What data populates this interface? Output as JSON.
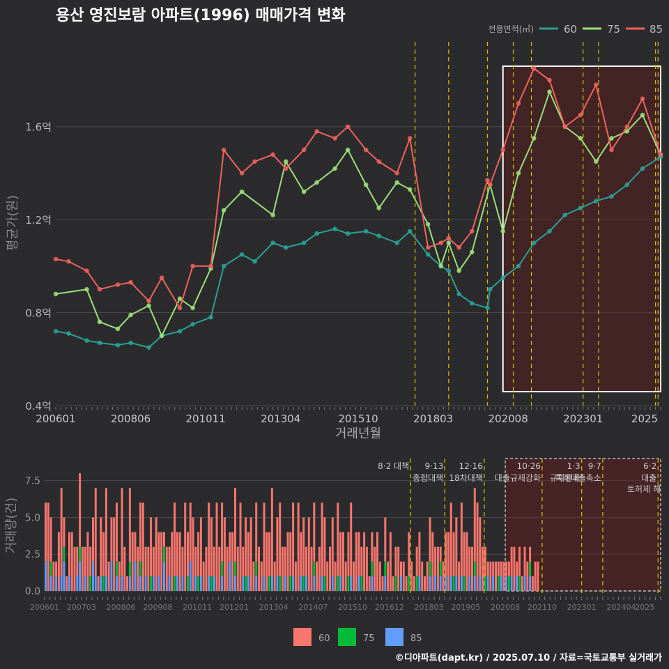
{
  "title": "용산 영진보람 아파트(1996) 매매가격 변화",
  "footer": "©디아파트(dapt.kr) / 2025.07.10 / 자료=국토교통부 실거래가",
  "colors": {
    "s60": "#2aa198",
    "s75": "#9be07a",
    "s85": "#f0625e",
    "bar60": "#f8766d",
    "bar75": "#00ba38",
    "bar85": "#619cff",
    "policy": "#d4b400",
    "grid": "#4a4a4c"
  },
  "chart_data": [
    {
      "type": "line",
      "title": "용산 영진보람 아파트(1996) 매매가격 변화",
      "xlabel": "거래년월",
      "ylabel": "평균가(원)",
      "legend_title": "전용면적(㎡)",
      "legend_position": "top-right",
      "ylim": [
        0.4,
        1.98
      ],
      "yticks": [
        0.4,
        0.8,
        1.2,
        1.6
      ],
      "ytick_labels": [
        "0.4억",
        "0.8억",
        "1.2억",
        "1.6억"
      ],
      "xticks": [
        "200601",
        "200806",
        "201011",
        "201304",
        "201510",
        "201803",
        "202008",
        "202301",
        "2025"
      ],
      "highlight_range": [
        "202006",
        "202507"
      ],
      "policy_lines": [
        "201708",
        "201809",
        "201912",
        "202010",
        "202105",
        "202301",
        "202307",
        "202505",
        "202506"
      ],
      "series": [
        {
          "name": "60",
          "x": [
            "200601",
            "200606",
            "200701",
            "200706",
            "200801",
            "200806",
            "200901",
            "200906",
            "201001",
            "201006",
            "201101",
            "201106",
            "201201",
            "201206",
            "201301",
            "201306",
            "201401",
            "201406",
            "201501",
            "201506",
            "201601",
            "201606",
            "201701",
            "201706",
            "201801",
            "201806",
            "201809",
            "201901",
            "201906",
            "201912",
            "202001",
            "202006",
            "202012",
            "202106",
            "202112",
            "202206",
            "202212",
            "202306",
            "202312",
            "202406",
            "202412",
            "202507"
          ],
          "values": [
            0.72,
            0.71,
            0.68,
            0.67,
            0.66,
            0.67,
            0.65,
            0.7,
            0.72,
            0.75,
            0.78,
            1.0,
            1.05,
            1.02,
            1.1,
            1.08,
            1.1,
            1.14,
            1.16,
            1.14,
            1.15,
            1.13,
            1.1,
            1.15,
            1.05,
            1.0,
            0.98,
            0.88,
            0.84,
            0.82,
            0.9,
            0.95,
            1.0,
            1.1,
            1.15,
            1.22,
            1.25,
            1.28,
            1.3,
            1.35,
            1.42,
            1.47
          ]
        },
        {
          "name": "75",
          "x": [
            "200601",
            "200701",
            "200706",
            "200801",
            "200806",
            "200901",
            "200906",
            "201001",
            "201006",
            "201101",
            "201106",
            "201201",
            "201301",
            "201306",
            "201401",
            "201406",
            "201501",
            "201506",
            "201601",
            "201606",
            "201701",
            "201706",
            "201801",
            "201806",
            "201809",
            "201901",
            "201906",
            "202001",
            "202006",
            "202012",
            "202106",
            "202112",
            "202206",
            "202212",
            "202306",
            "202312",
            "202406",
            "202412",
            "202507"
          ],
          "values": [
            0.88,
            0.9,
            0.76,
            0.73,
            0.79,
            0.83,
            0.7,
            0.86,
            0.82,
            0.99,
            1.24,
            1.32,
            1.22,
            1.45,
            1.32,
            1.36,
            1.42,
            1.5,
            1.35,
            1.25,
            1.36,
            1.33,
            1.18,
            1.0,
            1.1,
            0.98,
            1.06,
            1.35,
            1.15,
            1.4,
            1.55,
            1.75,
            1.6,
            1.55,
            1.45,
            1.55,
            1.58,
            1.65,
            1.48
          ]
        },
        {
          "name": "85",
          "x": [
            "200601",
            "200606",
            "200701",
            "200706",
            "200801",
            "200806",
            "200901",
            "200906",
            "201001",
            "201006",
            "201101",
            "201106",
            "201201",
            "201206",
            "201301",
            "201306",
            "201401",
            "201406",
            "201501",
            "201506",
            "201601",
            "201606",
            "201701",
            "201706",
            "201801",
            "201806",
            "201809",
            "201901",
            "201906",
            "201912",
            "202001",
            "202006",
            "202012",
            "202106",
            "202112",
            "202206",
            "202212",
            "202306",
            "202312",
            "202406",
            "202412",
            "202507"
          ],
          "values": [
            1.03,
            1.02,
            0.98,
            0.9,
            0.92,
            0.93,
            0.85,
            0.95,
            0.82,
            1.0,
            1.0,
            1.5,
            1.4,
            1.45,
            1.48,
            1.42,
            1.5,
            1.58,
            1.55,
            1.6,
            1.5,
            1.45,
            1.4,
            1.55,
            1.08,
            1.1,
            1.12,
            1.08,
            1.15,
            1.37,
            1.35,
            1.5,
            1.7,
            1.85,
            1.8,
            1.6,
            1.65,
            1.78,
            1.5,
            1.6,
            1.72,
            1.48
          ]
        }
      ]
    },
    {
      "type": "bar",
      "ylabel": "거래량(건)",
      "ylim": [
        0,
        9
      ],
      "yticks": [
        0.0,
        2.5,
        5.0,
        7.5
      ],
      "ytick_labels": [
        "0.0",
        "2.5",
        "5.0",
        "7.5"
      ],
      "xticks": [
        "200601",
        "200703",
        "200806",
        "200908",
        "201011",
        "201201",
        "201304",
        "201407",
        "201510",
        "201612",
        "201803",
        "201905",
        "202008",
        "202110",
        "202301",
        "202404",
        "2025"
      ],
      "legend_position": "bottom",
      "series_names": [
        "60",
        "75",
        "85"
      ],
      "policies": [
        {
          "x": "201708",
          "label": "8·2 대책"
        },
        {
          "x": "201809",
          "label": "9·13\n종합대책"
        },
        {
          "x": "201912",
          "label": "12·16\n18차대책"
        },
        {
          "x": "202110",
          "label": "10·26\n대출규제강화"
        },
        {
          "x": "202301",
          "label": "1·3\n규제완화"
        },
        {
          "x": "202309",
          "label": "9·7\n특례대출축소"
        },
        {
          "x": "202506",
          "label": "6·2\n대출"
        }
      ],
      "policy_tail_labels": [
        "토허제 해"
      ],
      "monthly_counts": {
        "60": [
          4,
          6,
          3,
          2,
          1,
          4,
          6,
          2,
          1,
          3,
          4,
          3,
          2,
          5,
          3,
          2,
          4,
          2,
          3,
          6,
          1,
          4,
          3,
          6,
          2,
          3,
          5,
          4,
          2,
          6,
          3,
          1,
          5,
          4,
          2,
          3,
          4,
          6,
          2,
          3,
          4,
          2,
          5,
          3,
          4,
          1,
          3,
          2,
          4,
          5,
          3,
          4,
          2,
          6,
          3,
          4,
          5,
          2,
          3,
          4,
          2,
          3,
          5,
          4,
          2,
          6,
          3,
          4,
          5,
          3,
          2,
          4,
          5,
          3,
          6,
          2,
          4,
          3,
          5,
          2,
          4,
          3,
          2,
          5,
          4,
          3,
          6,
          2,
          4,
          5,
          3,
          2,
          4,
          3,
          5,
          2,
          6,
          3,
          4,
          2,
          5,
          3,
          4,
          2,
          3,
          5,
          4,
          2,
          3,
          4,
          2,
          5,
          3,
          4,
          2,
          3,
          5,
          2,
          4,
          3,
          2,
          4,
          3,
          1,
          2,
          3,
          4,
          2,
          1,
          3,
          2,
          4,
          1,
          2,
          3,
          1,
          2,
          1,
          3,
          2,
          1,
          2,
          3,
          2,
          1,
          2,
          3,
          4,
          2,
          3,
          1,
          2,
          3,
          4,
          5,
          3,
          4,
          2,
          5,
          3,
          4,
          2,
          3,
          5,
          6,
          4,
          3,
          2,
          1,
          2,
          1,
          2,
          1,
          1,
          2,
          1,
          1,
          2,
          3,
          1,
          2,
          1,
          2,
          2,
          1,
          1,
          2,
          2
        ],
        "75": [
          0,
          0,
          1,
          0,
          0,
          0,
          0,
          1,
          0,
          0,
          0,
          0,
          0,
          1,
          0,
          0,
          0,
          1,
          0,
          0,
          0,
          0,
          1,
          0,
          0,
          0,
          0,
          1,
          0,
          0,
          0,
          0,
          1,
          0,
          0,
          0,
          1,
          0,
          0,
          0,
          1,
          0,
          0,
          0,
          0,
          1,
          0,
          0,
          0,
          1,
          0,
          0,
          0,
          0,
          1,
          0,
          0,
          0,
          1,
          0,
          0,
          0,
          0,
          1,
          0,
          0,
          0,
          1,
          0,
          0,
          0,
          0,
          1,
          0,
          0,
          0,
          1,
          0,
          0,
          0,
          1,
          0,
          0,
          0,
          0,
          1,
          0,
          0,
          0,
          1,
          0,
          0,
          0,
          1,
          0,
          0,
          0,
          0,
          1,
          0,
          0,
          0,
          1,
          0,
          0,
          0,
          1,
          0,
          0,
          0,
          0,
          1,
          0,
          0,
          0,
          1,
          0,
          0,
          0,
          0,
          1,
          0,
          0,
          0,
          1,
          0,
          0,
          0,
          0,
          1,
          0,
          0,
          0,
          1,
          0,
          0,
          0,
          0,
          1,
          0,
          0,
          1,
          0,
          0,
          0,
          0,
          1,
          0,
          0,
          0,
          1,
          0,
          0,
          0,
          0,
          1,
          0,
          0,
          0,
          1,
          0,
          0,
          0,
          1,
          0,
          0,
          0,
          1,
          0,
          0,
          0,
          0,
          1,
          0,
          0,
          0,
          1,
          0,
          0,
          0,
          1,
          0,
          0,
          0,
          1,
          0,
          0
        ],
        "85": [
          2,
          0,
          1,
          0,
          1,
          0,
          1,
          2,
          0,
          1,
          0,
          0,
          1,
          2,
          0,
          1,
          0,
          0,
          2,
          1,
          0,
          1,
          0,
          1,
          0,
          2,
          0,
          1,
          0,
          1,
          0,
          0,
          1,
          0,
          2,
          0,
          1,
          0,
          1,
          0,
          0,
          1,
          0,
          1,
          0,
          2,
          0,
          1,
          0,
          0,
          1,
          0,
          1,
          0,
          0,
          2,
          0,
          1,
          0,
          1,
          0,
          0,
          1,
          0,
          1,
          0,
          0,
          1,
          0,
          0,
          2,
          0,
          1,
          0,
          0,
          1,
          0,
          1,
          0,
          0,
          1,
          0,
          0,
          1,
          0,
          0,
          1,
          0,
          1,
          0,
          0,
          1,
          0,
          0,
          1,
          0,
          0,
          1,
          0,
          1,
          0,
          0,
          1,
          0,
          0,
          1,
          0,
          0,
          0,
          1,
          0,
          0,
          1,
          0,
          0,
          0,
          1,
          0,
          0,
          1,
          0,
          0,
          0,
          0,
          1,
          0,
          0,
          0,
          0,
          1,
          0,
          0,
          0,
          0,
          0,
          1,
          0,
          0,
          0,
          0,
          0,
          0,
          1,
          0,
          0,
          0,
          1,
          0,
          1,
          0,
          1,
          0,
          1,
          0,
          1,
          0,
          1,
          0,
          1,
          0,
          0,
          1,
          0,
          1,
          0,
          1,
          0,
          0,
          1,
          0,
          1,
          0,
          0,
          1,
          0,
          1,
          0,
          1,
          0,
          1,
          0,
          0,
          1,
          0,
          1,
          0
        ]
      }
    }
  ]
}
